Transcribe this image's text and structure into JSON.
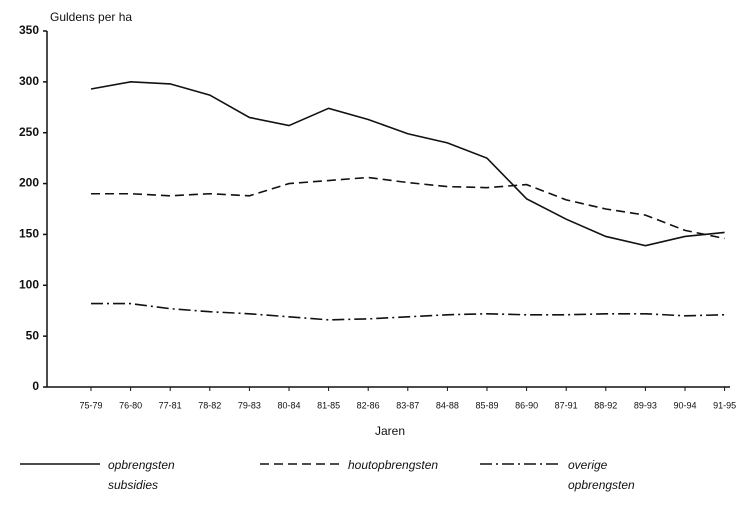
{
  "chart_data": {
    "type": "line",
    "y_label": "Guldens per ha",
    "x_label": "Jaren",
    "categories": [
      "75-79",
      "76-80",
      "77-81",
      "78-82",
      "79-83",
      "80-84",
      "81-85",
      "82-86",
      "83-87",
      "84-88",
      "85-89",
      "86-90",
      "87-91",
      "88-92",
      "89-93",
      "90-94",
      "91-95"
    ],
    "series": [
      {
        "name": "opbrengsten subsidies",
        "color": "#111111",
        "dash": "solid",
        "values": [
          293,
          300,
          298,
          287,
          265,
          257,
          274,
          263,
          249,
          240,
          225,
          185,
          165,
          148,
          139,
          148,
          152
        ]
      },
      {
        "name": "houtopbrengsten",
        "color": "#111111",
        "dash": "dashed",
        "values": [
          190,
          190,
          188,
          190,
          188,
          200,
          203,
          206,
          201,
          197,
          196,
          199,
          184,
          175,
          169,
          154,
          146
        ]
      },
      {
        "name": "overige opbrengsten",
        "color": "#111111",
        "dash": "dashdot",
        "values": [
          82,
          82,
          77,
          74,
          72,
          69,
          66,
          67,
          69,
          71,
          72,
          71,
          71,
          72,
          72,
          70,
          71
        ]
      }
    ],
    "ylim": [
      0,
      350
    ],
    "yticks": [
      0,
      50,
      100,
      150,
      200,
      250,
      300,
      350
    ],
    "grid": false
  }
}
